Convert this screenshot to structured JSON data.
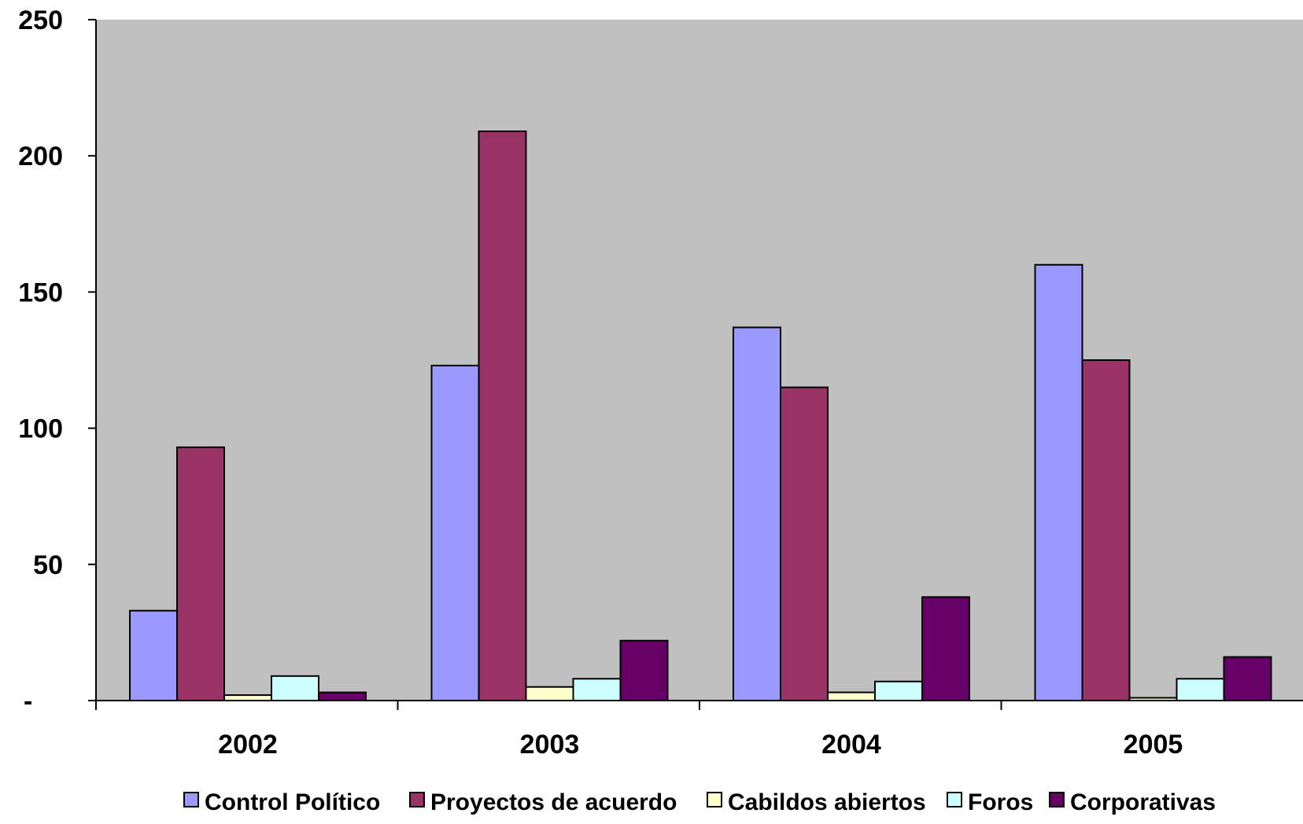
{
  "chart_data": {
    "type": "bar",
    "title": "",
    "xlabel": "",
    "ylabel": "",
    "categories": [
      "2002",
      "2003",
      "2004",
      "2005"
    ],
    "y_ticks": [
      {
        "value": 0,
        "label": "-"
      },
      {
        "value": 50,
        "label": "50"
      },
      {
        "value": 100,
        "label": "100"
      },
      {
        "value": 150,
        "label": "150"
      },
      {
        "value": 200,
        "label": "200"
      },
      {
        "value": 250,
        "label": "250"
      }
    ],
    "ylim": [
      0,
      250
    ],
    "grid": false,
    "plot_background": "#c0c0c0",
    "legend_position": "bottom",
    "series": [
      {
        "name": "Control Político",
        "color": "#9999ff",
        "values": [
          33,
          123,
          137,
          160
        ]
      },
      {
        "name": "Proyectos de acuerdo",
        "color": "#993366",
        "values": [
          93,
          209,
          115,
          125
        ]
      },
      {
        "name": "Cabildos abiertos",
        "color": "#ffffcc",
        "values": [
          2,
          5,
          3,
          1
        ]
      },
      {
        "name": "Foros",
        "color": "#ccffff",
        "values": [
          9,
          8,
          7,
          8
        ]
      },
      {
        "name": "Corporativas",
        "color": "#660066",
        "values": [
          3,
          22,
          38,
          16
        ]
      }
    ]
  }
}
